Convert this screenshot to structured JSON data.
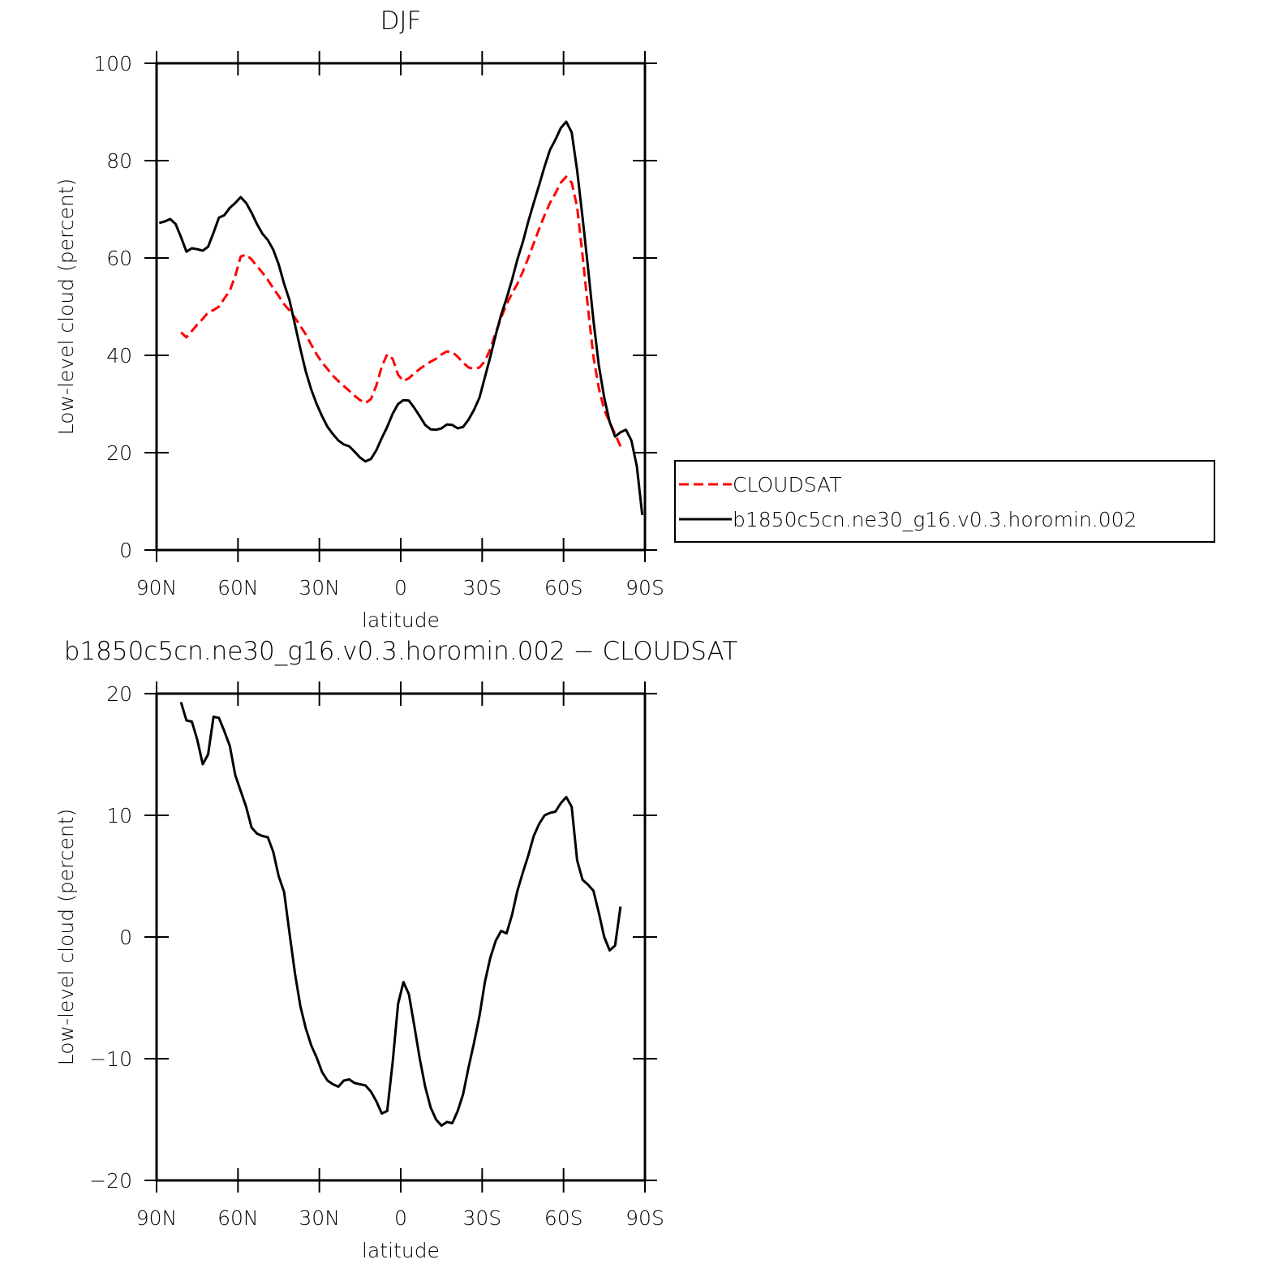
{
  "chart_data": [
    {
      "type": "line",
      "title": "DJF",
      "xlabel": "latitude",
      "ylabel": "Low-level cloud (percent)",
      "xlim": [
        90,
        -90
      ],
      "xticks": [
        {
          "value": 90,
          "label": "90N"
        },
        {
          "value": 60,
          "label": "60N"
        },
        {
          "value": 30,
          "label": "30N"
        },
        0,
        {
          "value": -30,
          "label": "30S"
        },
        {
          "value": -60,
          "label": "60S"
        },
        {
          "value": -90,
          "label": "90S"
        }
      ],
      "ylim": [
        0,
        100
      ],
      "yticks": [
        0,
        20,
        40,
        60,
        80,
        100
      ],
      "legend": "outside right",
      "x": [
        89,
        87,
        85,
        83,
        81,
        79,
        77,
        75,
        73,
        71,
        69,
        67,
        65,
        63,
        61,
        59,
        57,
        55,
        53,
        51,
        49,
        47,
        45,
        43,
        41,
        39,
        37,
        35,
        33,
        31,
        29,
        27,
        25,
        23,
        21,
        19,
        17,
        15,
        13,
        11,
        9,
        7,
        5,
        3,
        1,
        -1,
        -3,
        -5,
        -7,
        -9,
        -11,
        -13,
        -15,
        -17,
        -19,
        -21,
        -23,
        -25,
        -27,
        -29,
        -31,
        -33,
        -35,
        -37,
        -39,
        -41,
        -43,
        -45,
        -47,
        -49,
        -51,
        -53,
        -55,
        -57,
        -59,
        -61,
        -63,
        -65,
        -67,
        -69,
        -71,
        -73,
        -75,
        -77,
        -79,
        -81,
        -83,
        -85,
        -87,
        -89
      ],
      "series": [
        {
          "name": "CLOUDSAT",
          "color": "#ff0000",
          "dash": true,
          "values": [
            null,
            null,
            null,
            null,
            44.7,
            43.7,
            45.0,
            46.3,
            47.5,
            48.8,
            49.3,
            50.0,
            51.7,
            53.3,
            56.3,
            60.3,
            60.7,
            59.7,
            58.3,
            57.0,
            55.5,
            53.8,
            52.2,
            50.5,
            49.2,
            47.7,
            46.0,
            44.3,
            42.2,
            40.2,
            38.5,
            37.2,
            35.8,
            34.7,
            33.7,
            32.7,
            31.7,
            30.8,
            30.2,
            31.0,
            33.8,
            37.7,
            40.2,
            39.3,
            36.0,
            34.7,
            35.3,
            36.3,
            37.2,
            38.0,
            38.7,
            39.3,
            40.2,
            40.8,
            40.7,
            39.7,
            38.5,
            37.5,
            37.2,
            37.5,
            38.8,
            41.3,
            44.7,
            47.7,
            50.5,
            52.7,
            54.7,
            57.2,
            60.0,
            63.0,
            66.0,
            68.8,
            71.3,
            73.3,
            75.5,
            76.7,
            75.5,
            70.5,
            60.5,
            49.7,
            39.7,
            33.3,
            28.8,
            26.3,
            23.8,
            21.3,
            null,
            null,
            null,
            null
          ]
        },
        {
          "name": "b1850c5cn.ne30_g16.v0.3.horomin.002",
          "color": "#000000",
          "dash": false,
          "values": [
            67.2,
            67.5,
            68.0,
            67.0,
            64.3,
            61.3,
            62.0,
            61.8,
            61.5,
            62.3,
            65.2,
            68.3,
            68.8,
            70.3,
            71.3,
            72.5,
            71.3,
            69.3,
            67.0,
            65.0,
            63.7,
            61.7,
            58.7,
            54.7,
            51.3,
            46.3,
            41.3,
            36.7,
            33.0,
            30.0,
            27.5,
            25.3,
            23.8,
            22.5,
            21.7,
            21.3,
            20.2,
            19.0,
            18.2,
            18.7,
            20.5,
            23.0,
            25.3,
            28.0,
            30.0,
            30.8,
            30.7,
            29.2,
            27.5,
            25.7,
            24.8,
            24.7,
            25.0,
            25.8,
            25.7,
            25.0,
            25.3,
            26.8,
            28.8,
            31.3,
            35.5,
            39.7,
            44.2,
            48.3,
            51.7,
            55.5,
            59.7,
            63.3,
            67.5,
            71.3,
            75.0,
            78.8,
            82.2,
            84.3,
            86.7,
            88.0,
            85.8,
            78.0,
            68.3,
            58.0,
            47.2,
            38.0,
            31.3,
            26.3,
            23.3,
            24.2,
            24.7,
            22.5,
            17.2,
            7.2
          ]
        }
      ]
    },
    {
      "type": "line",
      "title": "b1850c5cn.ne30_g16.v0.3.horomin.002 − CLOUDSAT",
      "xlabel": "latitude",
      "ylabel": "Low-level cloud (percent)",
      "xlim": [
        90,
        -90
      ],
      "xticks": [
        {
          "value": 90,
          "label": "90N"
        },
        {
          "value": 60,
          "label": "60N"
        },
        {
          "value": 30,
          "label": "30N"
        },
        0,
        {
          "value": -30,
          "label": "30S"
        },
        {
          "value": -60,
          "label": "60S"
        },
        {
          "value": -90,
          "label": "90S"
        }
      ],
      "ylim": [
        -20,
        20
      ],
      "yticks": [
        {
          "value": -20,
          "label": "−20"
        },
        {
          "value": -10,
          "label": "−10"
        },
        0,
        10,
        20
      ],
      "x": [
        81,
        79,
        77,
        75,
        73,
        71,
        69,
        67,
        65,
        63,
        61,
        59,
        57,
        55,
        53,
        51,
        49,
        47,
        45,
        43,
        41,
        39,
        37,
        35,
        33,
        31,
        29,
        27,
        25,
        23,
        21,
        19,
        17,
        15,
        13,
        11,
        9,
        7,
        5,
        3,
        1,
        -1,
        -3,
        -5,
        -7,
        -9,
        -11,
        -13,
        -15,
        -17,
        -19,
        -21,
        -23,
        -25,
        -27,
        -29,
        -31,
        -33,
        -35,
        -37,
        -39,
        -41,
        -43,
        -45,
        -47,
        -49,
        -51,
        -53,
        -55,
        -57,
        -59,
        -61,
        -63,
        -65,
        -67,
        -69,
        -71,
        -73,
        -75,
        -77,
        -79,
        -81
      ],
      "series": [
        {
          "color": "#000000",
          "dash": false,
          "values": [
            19.3,
            17.8,
            17.7,
            16.2,
            14.2,
            15.0,
            18.1,
            18.0,
            16.9,
            15.7,
            13.3,
            12.0,
            10.7,
            9.0,
            8.5,
            8.3,
            8.2,
            7.0,
            5.0,
            3.7,
            0.3,
            -3.0,
            -5.7,
            -7.5,
            -8.9,
            -9.9,
            -11.1,
            -11.8,
            -12.1,
            -12.3,
            -11.8,
            -11.7,
            -12.0,
            -12.1,
            -12.2,
            -12.7,
            -13.5,
            -14.5,
            -14.3,
            -10.3,
            -5.5,
            -3.7,
            -4.7,
            -7.3,
            -10.0,
            -12.3,
            -14.0,
            -15.0,
            -15.5,
            -15.2,
            -15.3,
            -14.3,
            -12.9,
            -10.7,
            -8.7,
            -6.5,
            -3.7,
            -1.7,
            -0.3,
            0.5,
            0.3,
            1.8,
            3.8,
            5.3,
            6.7,
            8.3,
            9.3,
            10.0,
            10.2,
            10.3,
            11.0,
            11.5,
            10.7,
            6.3,
            4.7,
            4.3,
            3.8,
            2.0,
            0.0,
            -1.1,
            -0.7,
            2.5
          ]
        }
      ]
    }
  ]
}
